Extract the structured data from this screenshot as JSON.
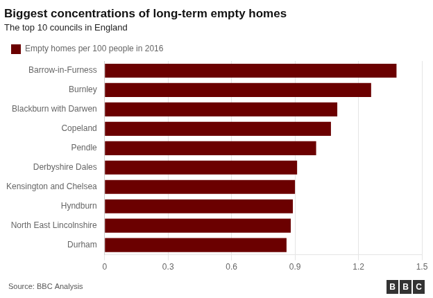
{
  "chart_data": {
    "type": "bar",
    "orientation": "horizontal",
    "title": "Biggest concentrations of long-term empty homes",
    "subtitle": "The top 10 councils in England",
    "annotations": [
      "Source: BBC Analysis",
      "BBC"
    ],
    "categories": [
      "Barrow-in-Furness",
      "Burnley",
      "Blackburn with Darwen",
      "Copeland",
      "Pendle",
      "Derbyshire Dales",
      "Kensington and Chelsea",
      "Hyndburn",
      "North East Lincolnshire",
      "Durham"
    ],
    "series": [
      {
        "name": "Empty homes per 100 people in 2016",
        "color": "#6b0000",
        "values": [
          1.38,
          1.26,
          1.1,
          1.07,
          1.0,
          0.91,
          0.9,
          0.89,
          0.88,
          0.86
        ]
      }
    ],
    "xlim": [
      0,
      1.5
    ],
    "xticks": [
      0,
      0.3,
      0.6,
      0.9,
      1.2,
      1.5
    ],
    "grid": true,
    "legend": "upper left"
  }
}
